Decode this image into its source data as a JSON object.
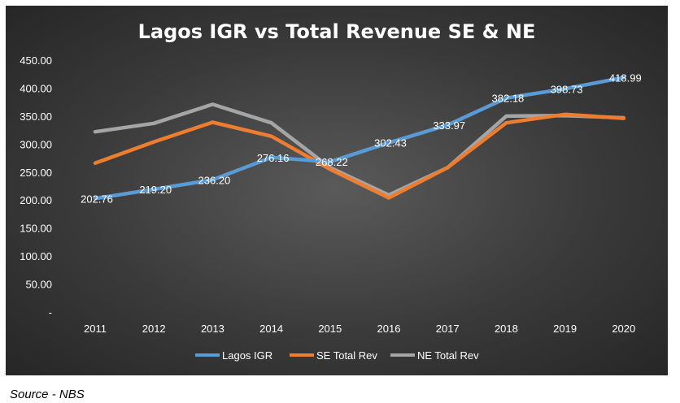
{
  "chart_data": {
    "type": "line",
    "title": "Lagos IGR vs Total Revenue SE & NE",
    "xlabel": "",
    "ylabel": "",
    "categories": [
      "2011",
      "2012",
      "2013",
      "2014",
      "2015",
      "2016",
      "2017",
      "2018",
      "2019",
      "2020"
    ],
    "y_tick_labels": [
      "-",
      "50.00",
      "100.00",
      "150.00",
      "200.00",
      "250.00",
      "300.00",
      "350.00",
      "400.00",
      "450.00"
    ],
    "ylim": [
      0,
      450
    ],
    "grid": false,
    "legend_position": "bottom",
    "series": [
      {
        "name": "Lagos IGR",
        "color": "#5b9bd5",
        "values": [
          202.76,
          219.2,
          236.2,
          276.16,
          268.22,
          302.43,
          333.97,
          382.18,
          398.73,
          418.99
        ],
        "labels": [
          "202.76",
          "219.20",
          "236.20",
          "276.16",
          "268.22",
          "302.43",
          "333.97",
          "382.18",
          "398.73",
          "418.99"
        ]
      },
      {
        "name": "SE Total Rev",
        "color": "#ed7d31",
        "values": [
          266,
          304,
          339,
          314,
          255,
          204,
          258,
          338,
          353,
          346
        ]
      },
      {
        "name": "NE Total Rev",
        "color": "#a5a5a5",
        "values": [
          322,
          337,
          371,
          338,
          258,
          209,
          258,
          350,
          351,
          347
        ]
      }
    ]
  },
  "source_note": "Source - NBS"
}
